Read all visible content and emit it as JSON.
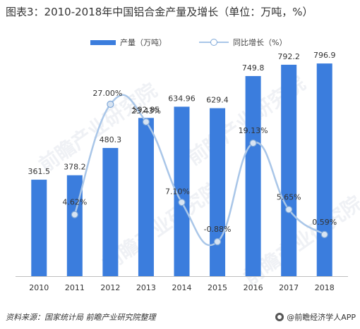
{
  "title": "图表3：2010-2018年中国铝合金产量及增长（单位：万吨，%）",
  "legend": {
    "bar_label": "产量（万吨）",
    "line_label": "同比增长（%）"
  },
  "colors": {
    "bar": "#3b7ddd",
    "line": "#a9c6e8",
    "marker_fill": "#d8e4f2",
    "marker_stroke": "#7fa8d8",
    "axis": "#bfbfbf"
  },
  "chart_data": {
    "type": "bar",
    "categories": [
      "2010",
      "2011",
      "2012",
      "2013",
      "2014",
      "2015",
      "2016",
      "2017",
      "2018"
    ],
    "series": [
      {
        "name": "产量（万吨）",
        "type": "bar",
        "values": [
          361.5,
          378.2,
          480.3,
          592.85,
          634.96,
          629.4,
          749.8,
          792.2,
          796.9
        ],
        "labels": [
          "361.5",
          "378.2",
          "480.3",
          "592.85",
          "634.96",
          "629.4",
          "749.8",
          "792.2",
          "796.9"
        ]
      },
      {
        "name": "同比增长（%）",
        "type": "line",
        "smooth": true,
        "values": [
          null,
          4.62,
          27.0,
          23.43,
          7.1,
          -0.88,
          19.13,
          5.65,
          0.59
        ],
        "labels": [
          "",
          "4.62%",
          "27.00%",
          "23.43%",
          "7.10%",
          "-0.88%",
          "19.13%",
          "5.65%",
          "0.59%"
        ]
      }
    ],
    "bar_ylim": [
      0,
      850
    ],
    "line_ylim": [
      -5,
      31
    ],
    "grid": false,
    "legend_position": "top-center"
  },
  "watermark_text": "前瞻产业研究院",
  "footer": {
    "source": "资料来源：国家统计局 前瞻产业研究院整理",
    "brand": "@前瞻经济学人APP"
  }
}
